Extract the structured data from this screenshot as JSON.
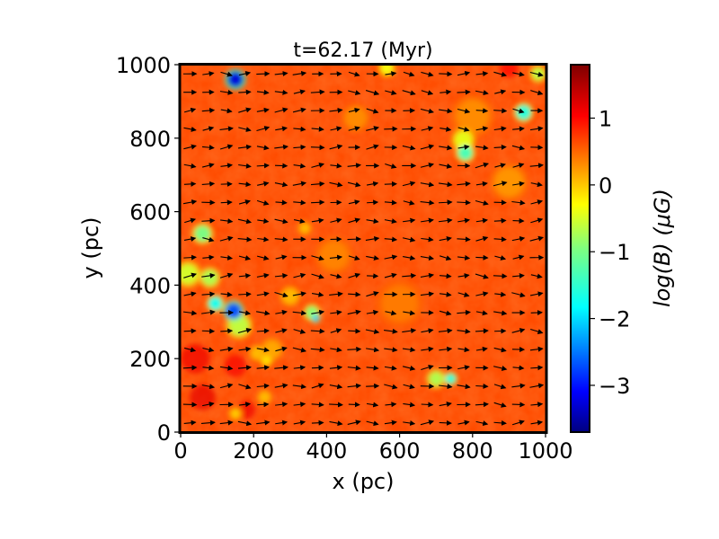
{
  "chart_data": {
    "type": "heatmap",
    "title": "t=62.17 (Myr)",
    "xlabel": "x (pc)",
    "ylabel": "y (pc)",
    "xlim": [
      0,
      1000
    ],
    "ylim": [
      0,
      1000
    ],
    "xticks": [
      0,
      200,
      400,
      600,
      800,
      1000
    ],
    "yticks": [
      0,
      200,
      400,
      600,
      800,
      1000
    ],
    "colorbar": {
      "label": "log(B) (μG)",
      "range": [
        -3.7,
        1.8
      ],
      "ticks": [
        -3,
        -2,
        -1,
        0,
        1
      ],
      "tick_labels": [
        "−3",
        "−2",
        "−1",
        "0",
        "1"
      ],
      "colormap": "jet"
    },
    "field": {
      "background_value": 0.7,
      "blobs": [
        {
          "x": 150,
          "y": 960,
          "r": 22,
          "value": -3.2
        },
        {
          "x": 565,
          "y": 990,
          "r": 18,
          "value": -0.3
        },
        {
          "x": 980,
          "y": 975,
          "r": 18,
          "value": -0.6
        },
        {
          "x": 940,
          "y": 870,
          "r": 20,
          "value": -1.5
        },
        {
          "x": 775,
          "y": 795,
          "r": 25,
          "value": -0.4
        },
        {
          "x": 780,
          "y": 760,
          "r": 20,
          "value": -1.3
        },
        {
          "x": 60,
          "y": 540,
          "r": 22,
          "value": -1.0
        },
        {
          "x": 20,
          "y": 430,
          "r": 28,
          "value": -0.5
        },
        {
          "x": 80,
          "y": 420,
          "r": 22,
          "value": -0.7
        },
        {
          "x": 95,
          "y": 350,
          "r": 18,
          "value": -1.6
        },
        {
          "x": 145,
          "y": 330,
          "r": 22,
          "value": -2.6
        },
        {
          "x": 160,
          "y": 290,
          "r": 28,
          "value": -0.6
        },
        {
          "x": 340,
          "y": 555,
          "r": 15,
          "value": 0.1
        },
        {
          "x": 360,
          "y": 325,
          "r": 18,
          "value": -0.9
        },
        {
          "x": 370,
          "y": 310,
          "r": 10,
          "value": -1.9
        },
        {
          "x": 300,
          "y": 370,
          "r": 22,
          "value": 0.1
        },
        {
          "x": 210,
          "y": 215,
          "r": 18,
          "value": 0.1
        },
        {
          "x": 235,
          "y": 195,
          "r": 14,
          "value": -0.1
        },
        {
          "x": 700,
          "y": 145,
          "r": 20,
          "value": -0.7
        },
        {
          "x": 740,
          "y": 145,
          "r": 14,
          "value": -1.5
        },
        {
          "x": 150,
          "y": 50,
          "r": 14,
          "value": 0.0
        },
        {
          "x": 230,
          "y": 95,
          "r": 16,
          "value": 0.1
        },
        {
          "x": 250,
          "y": 225,
          "r": 25,
          "value": 0.2
        },
        {
          "x": 480,
          "y": 855,
          "r": 30,
          "value": 0.35
        },
        {
          "x": 900,
          "y": 680,
          "r": 40,
          "value": 0.3
        },
        {
          "x": 800,
          "y": 860,
          "r": 45,
          "value": 0.35
        },
        {
          "x": 420,
          "y": 480,
          "r": 40,
          "value": 0.4
        },
        {
          "x": 600,
          "y": 350,
          "r": 50,
          "value": 0.45
        }
      ],
      "dark_spots": [
        {
          "x": 40,
          "y": 200,
          "r": 40,
          "value": 1.2
        },
        {
          "x": 60,
          "y": 95,
          "r": 35,
          "value": 1.25
        },
        {
          "x": 150,
          "y": 180,
          "r": 30,
          "value": 1.15
        },
        {
          "x": 900,
          "y": 990,
          "r": 25,
          "value": 1.1
        },
        {
          "x": 180,
          "y": 60,
          "r": 25,
          "value": 1.2
        }
      ]
    },
    "vectors": {
      "grid_step": 50,
      "first": 25,
      "mean_angle_deg": 0,
      "spread_deg": 18
    }
  }
}
